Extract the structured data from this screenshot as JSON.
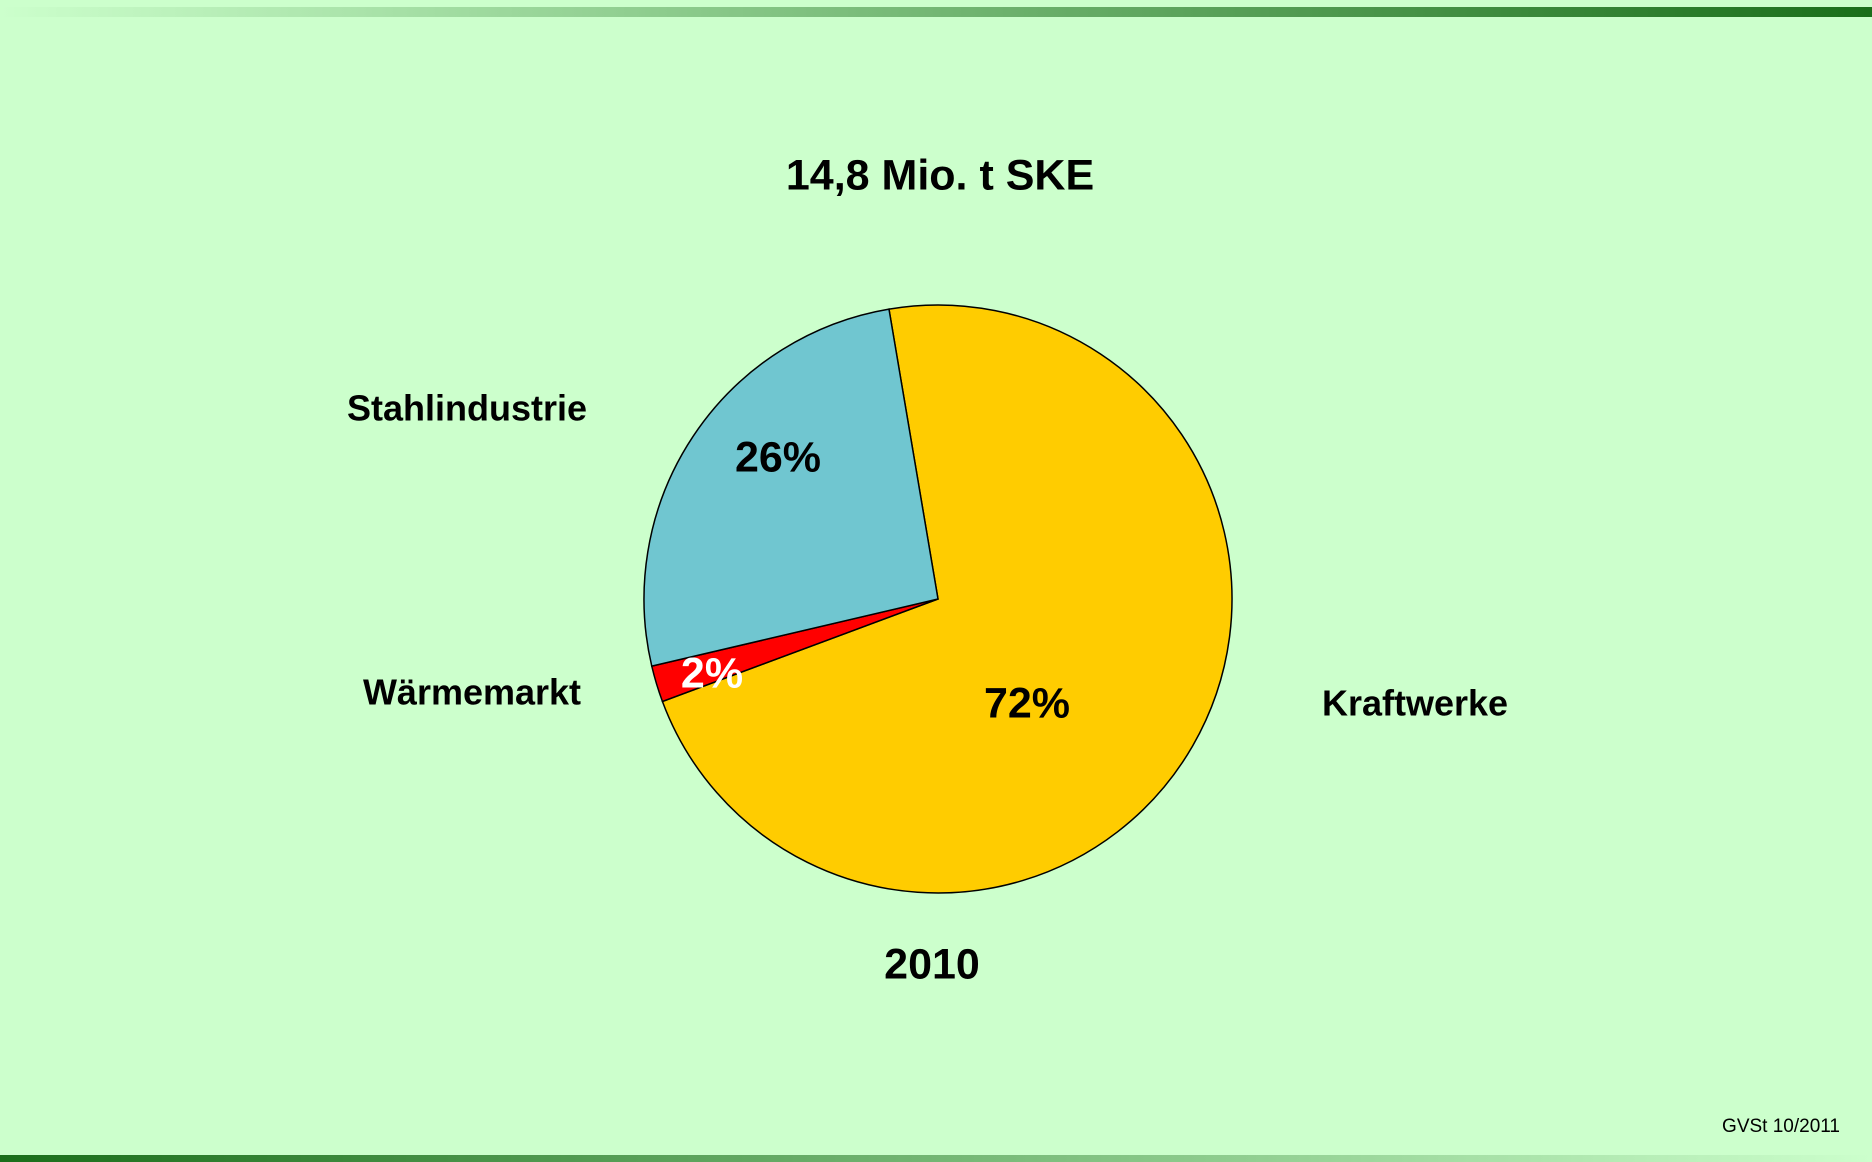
{
  "chart_data": {
    "type": "pie",
    "title": "14,8 Mio. t SKE",
    "xlabel": "2010",
    "categories": [
      "Kraftwerke",
      "Wärmemarkt",
      "Stahlindustrie"
    ],
    "values": [
      72,
      2,
      26
    ],
    "value_labels": [
      "72%",
      "2%",
      "26%"
    ],
    "colors": [
      "#ffcc00",
      "#ff0000",
      "#70c6d0"
    ],
    "source": "GVSt 10/2011"
  }
}
